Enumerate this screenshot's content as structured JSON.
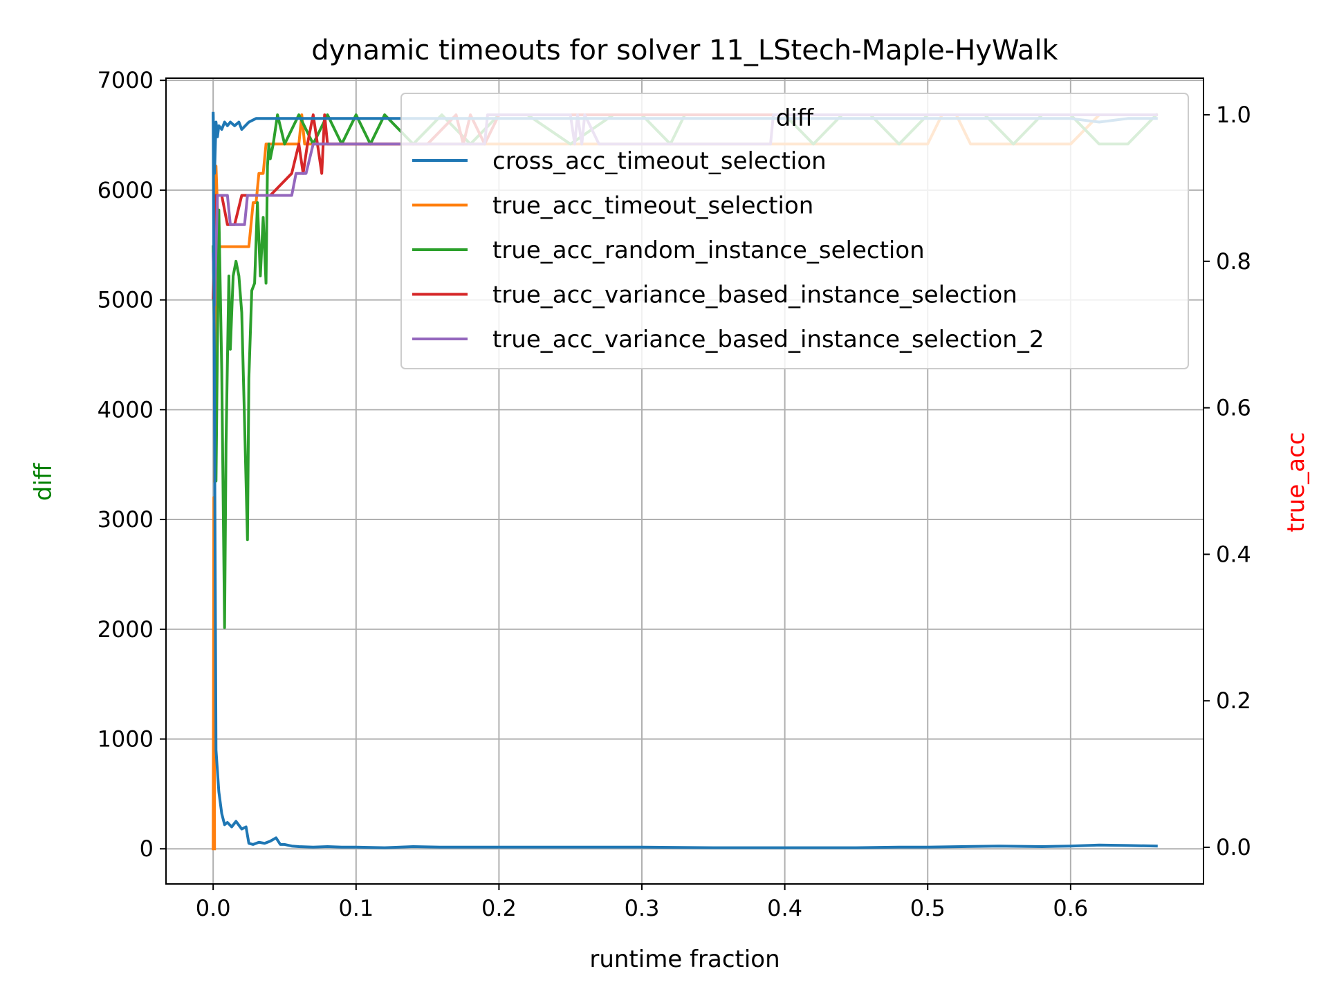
{
  "chart_data": {
    "type": "line",
    "title": "dynamic timeouts for solver 11_LStech-Maple-HyWalk",
    "xlabel": "runtime fraction",
    "ylabel_left": "diff",
    "ylabel_right": "true_acc",
    "ylabel_left_color": "#008000",
    "ylabel_right_color": "#ff0000",
    "xlim": [
      -0.033,
      0.693
    ],
    "ylim_left": [
      -320,
      7020
    ],
    "ylim_right": [
      -0.05,
      1.05
    ],
    "xticks": [
      "0.0",
      "0.1",
      "0.2",
      "0.3",
      "0.4",
      "0.5",
      "0.6"
    ],
    "yticks_left": [
      "0",
      "1000",
      "2000",
      "3000",
      "4000",
      "5000",
      "6000",
      "7000"
    ],
    "yticks_right": [
      "0.0",
      "0.2",
      "0.4",
      "0.6",
      "0.8",
      "1.0"
    ],
    "grid": true,
    "legend": {
      "title": "diff",
      "placement": "upper-right"
    },
    "series": [
      {
        "name": "cross_acc_timeout_selection",
        "color": "#1f77b4",
        "axis": "left",
        "x": [
          0.0,
          0.002,
          0.004,
          0.006,
          0.008,
          0.01,
          0.013,
          0.016,
          0.02,
          0.023,
          0.025,
          0.028,
          0.032,
          0.036,
          0.04,
          0.044,
          0.047,
          0.05,
          0.055,
          0.06,
          0.07,
          0.08,
          0.09,
          0.1,
          0.12,
          0.14,
          0.16,
          0.18,
          0.2,
          0.25,
          0.3,
          0.35,
          0.4,
          0.45,
          0.48,
          0.5,
          0.55,
          0.58,
          0.6,
          0.62,
          0.64,
          0.66
        ],
        "y": [
          6700,
          900,
          520,
          320,
          220,
          240,
          200,
          250,
          180,
          200,
          50,
          40,
          60,
          50,
          70,
          100,
          40,
          40,
          25,
          20,
          15,
          20,
          15,
          15,
          10,
          20,
          15,
          15,
          15,
          15,
          15,
          10,
          10,
          10,
          15,
          15,
          25,
          20,
          25,
          35,
          30,
          25
        ]
      },
      {
        "name": "cross_acc_timeout_selection",
        "color": "#1f77b4",
        "axis": "right",
        "x": [
          0.0,
          0.001,
          0.002,
          0.003,
          0.004,
          0.006,
          0.008,
          0.01,
          0.012,
          0.015,
          0.018,
          0.02,
          0.025,
          0.03,
          0.035,
          0.04,
          0.05,
          0.06,
          0.1,
          0.15,
          0.2,
          0.25,
          0.3,
          0.35,
          0.4,
          0.45,
          0.5,
          0.55,
          0.6,
          0.62,
          0.64,
          0.66
        ],
        "y": [
          1.0,
          0.92,
          0.99,
          0.97,
          0.985,
          0.98,
          0.99,
          0.985,
          0.99,
          0.985,
          0.99,
          0.98,
          0.99,
          0.995,
          0.995,
          0.995,
          0.995,
          0.995,
          0.995,
          0.995,
          0.995,
          0.995,
          0.995,
          0.995,
          0.995,
          0.995,
          0.995,
          0.995,
          0.995,
          0.99,
          0.995,
          0.995
        ]
      },
      {
        "name": "true_acc_timeout_selection",
        "color": "#ff7f0e",
        "axis": "left",
        "x": [
          0.0,
          0.0005,
          0.001
        ],
        "y": [
          0,
          3200,
          0
        ]
      },
      {
        "name": "true_acc_timeout_selection",
        "color": "#ff7f0e",
        "axis": "right",
        "x": [
          0.001,
          0.002,
          0.004,
          0.006,
          0.01,
          0.015,
          0.025,
          0.028,
          0.03,
          0.032,
          0.035,
          0.037,
          0.04,
          0.05,
          0.06,
          0.062,
          0.064,
          0.1,
          0.2,
          0.3,
          0.4,
          0.48,
          0.49,
          0.5,
          0.51,
          0.52,
          0.53,
          0.55,
          0.6,
          0.62,
          0.64,
          0.66
        ],
        "y": [
          0.5,
          0.93,
          0.82,
          0.82,
          0.82,
          0.82,
          0.82,
          0.88,
          0.88,
          0.92,
          0.92,
          0.96,
          0.96,
          0.96,
          0.96,
          1.0,
          0.96,
          0.96,
          0.96,
          0.96,
          0.96,
          0.96,
          0.96,
          0.96,
          1.0,
          1.0,
          0.96,
          0.96,
          0.96,
          1.0,
          1.0,
          1.0
        ]
      },
      {
        "name": "true_acc_random_instance_selection",
        "color": "#2ca02c",
        "axis": "right",
        "x": [
          0.0,
          0.002,
          0.004,
          0.006,
          0.008,
          0.009,
          0.011,
          0.012,
          0.014,
          0.016,
          0.018,
          0.02,
          0.022,
          0.024,
          0.025,
          0.027,
          0.029,
          0.031,
          0.033,
          0.035,
          0.037,
          0.038,
          0.039,
          0.04,
          0.042,
          0.045,
          0.05,
          0.06,
          0.07,
          0.08,
          0.09,
          0.1,
          0.11,
          0.12,
          0.14,
          0.16,
          0.18,
          0.2,
          0.22,
          0.25,
          0.28,
          0.3,
          0.32,
          0.33,
          0.34,
          0.35,
          0.36,
          0.38,
          0.4,
          0.42,
          0.44,
          0.46,
          0.48,
          0.5,
          0.52,
          0.54,
          0.56,
          0.58,
          0.6,
          0.62,
          0.64,
          0.66
        ],
        "y": [
          0.82,
          0.5,
          0.87,
          0.65,
          0.3,
          0.55,
          0.78,
          0.68,
          0.78,
          0.8,
          0.78,
          0.73,
          0.58,
          0.42,
          0.64,
          0.76,
          0.77,
          0.88,
          0.78,
          0.86,
          0.77,
          0.93,
          0.96,
          0.94,
          0.96,
          1.0,
          0.96,
          1.0,
          0.96,
          1.0,
          0.96,
          1.0,
          0.96,
          1.0,
          0.96,
          1.0,
          0.96,
          1.0,
          1.0,
          0.96,
          1.0,
          1.0,
          0.96,
          1.0,
          1.0,
          1.0,
          1.0,
          1.0,
          1.0,
          0.96,
          1.0,
          1.0,
          0.96,
          1.0,
          1.0,
          1.0,
          0.96,
          1.0,
          1.0,
          0.96,
          0.96,
          1.0
        ]
      },
      {
        "name": "true_acc_variance_based_instance_selection",
        "color": "#d62728",
        "axis": "right",
        "x": [
          0.0,
          0.002,
          0.004,
          0.006,
          0.01,
          0.015,
          0.02,
          0.025,
          0.03,
          0.04,
          0.055,
          0.06,
          0.063,
          0.066,
          0.07,
          0.073,
          0.076,
          0.078,
          0.08,
          0.1,
          0.15,
          0.17,
          0.175,
          0.18,
          0.19,
          0.2,
          0.25,
          0.3,
          0.35,
          0.4,
          0.45,
          0.5,
          0.55,
          0.6,
          0.66
        ],
        "y": [
          0.75,
          0.89,
          0.89,
          0.89,
          0.85,
          0.85,
          0.89,
          0.89,
          0.89,
          0.89,
          0.92,
          0.96,
          0.92,
          0.96,
          1.0,
          0.96,
          0.92,
          1.0,
          0.96,
          0.96,
          0.96,
          1.0,
          0.96,
          1.0,
          0.96,
          1.0,
          1.0,
          1.0,
          1.0,
          1.0,
          1.0,
          1.0,
          1.0,
          1.0,
          1.0
        ]
      },
      {
        "name": "true_acc_variance_based_instance_selection_2",
        "color": "#9467bd",
        "axis": "right",
        "x": [
          0.0,
          0.001,
          0.003,
          0.006,
          0.01,
          0.012,
          0.022,
          0.024,
          0.04,
          0.055,
          0.058,
          0.06,
          0.065,
          0.07,
          0.075,
          0.08,
          0.1,
          0.15,
          0.19,
          0.192,
          0.25,
          0.253,
          0.255,
          0.258,
          0.26,
          0.27,
          0.3,
          0.35,
          0.39,
          0.392,
          0.45,
          0.5,
          0.55,
          0.6,
          0.66
        ],
        "y": [
          0.81,
          0.74,
          0.89,
          0.89,
          0.89,
          0.85,
          0.85,
          0.89,
          0.89,
          0.89,
          0.92,
          0.92,
          0.92,
          0.96,
          0.96,
          0.96,
          0.96,
          0.96,
          0.96,
          1.0,
          1.0,
          0.96,
          1.0,
          0.96,
          1.0,
          0.96,
          0.96,
          0.96,
          0.96,
          1.0,
          1.0,
          1.0,
          1.0,
          1.0,
          1.0
        ]
      }
    ],
    "legend_entries": [
      {
        "label": "cross_acc_timeout_selection",
        "color": "#1f77b4"
      },
      {
        "label": "true_acc_timeout_selection",
        "color": "#ff7f0e"
      },
      {
        "label": "true_acc_random_instance_selection",
        "color": "#2ca02c"
      },
      {
        "label": "true_acc_variance_based_instance_selection",
        "color": "#d62728"
      },
      {
        "label": "true_acc_variance_based_instance_selection_2",
        "color": "#9467bd"
      }
    ]
  }
}
